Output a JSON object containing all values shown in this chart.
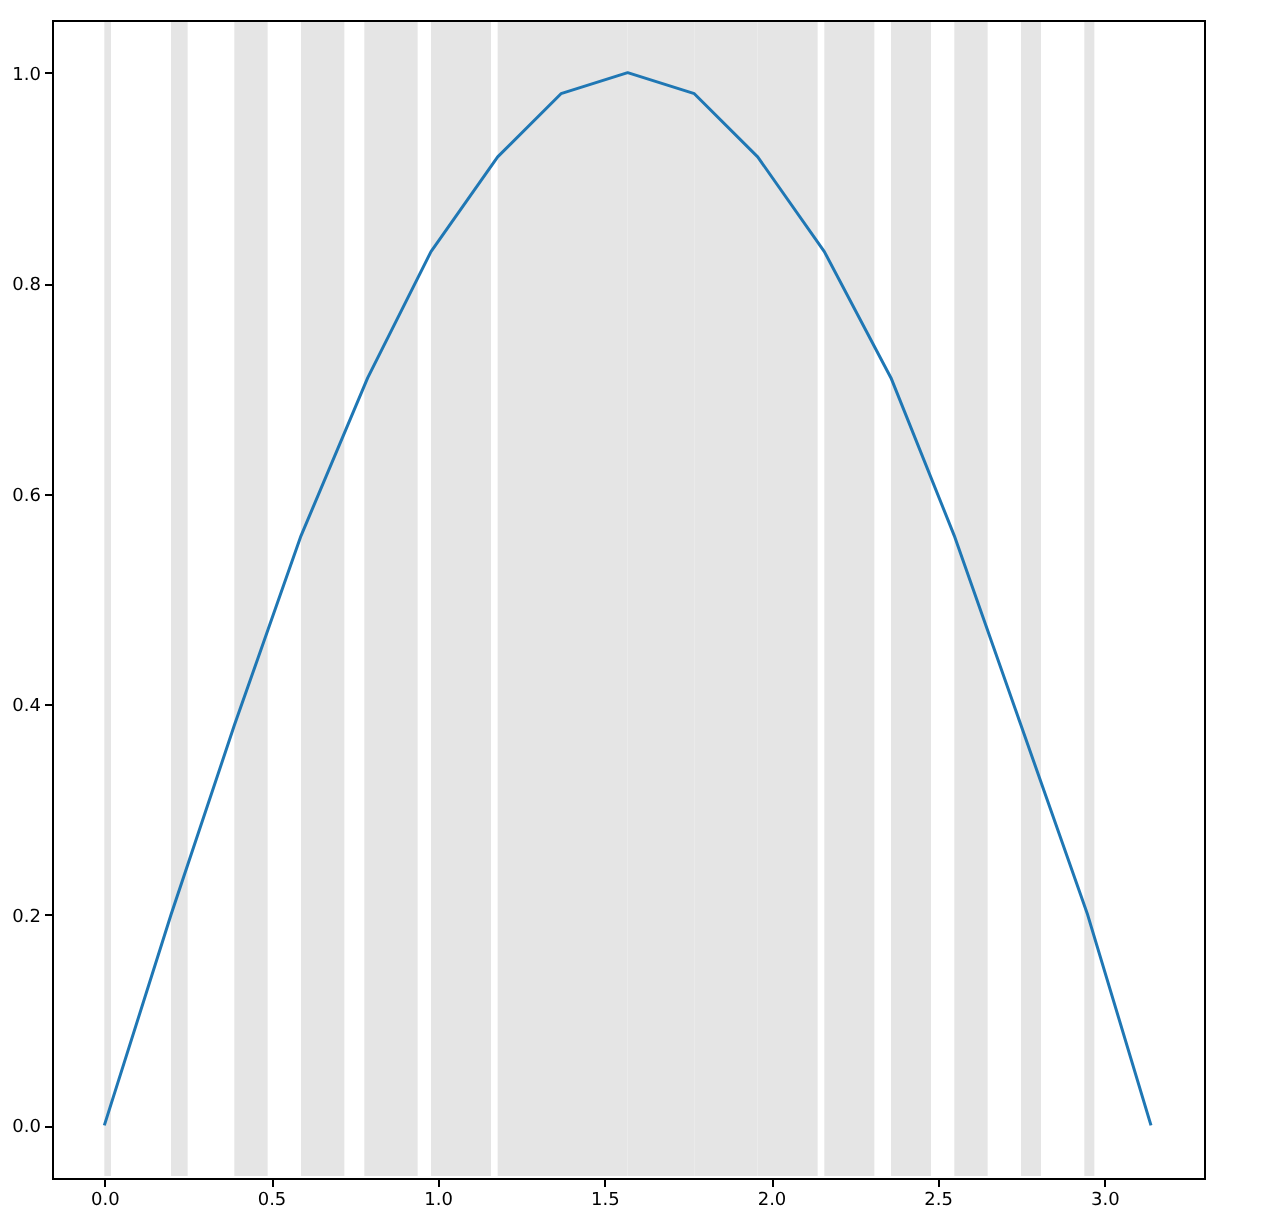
{
  "chart_data": {
    "type": "line",
    "x": [
      0,
      0.2,
      0.39,
      0.59,
      0.79,
      0.98,
      1.18,
      1.37,
      1.57,
      1.77,
      1.96,
      2.16,
      2.36,
      2.55,
      2.75,
      2.95,
      3.14
    ],
    "series": [
      {
        "color": "#1f77b4",
        "values": [
          0,
          0.2,
          0.38,
          0.56,
          0.71,
          0.83,
          0.92,
          0.98,
          1.0,
          0.98,
          0.92,
          0.83,
          0.71,
          0.56,
          0.38,
          0.2,
          0
        ]
      }
    ],
    "bands": [
      {
        "axis": "x",
        "from": 0,
        "to": 0.02,
        "color": "#e5e5e5"
      },
      {
        "axis": "x",
        "from": 0.2,
        "to": 0.25,
        "color": "#e5e5e5"
      },
      {
        "axis": "x",
        "from": 0.39,
        "to": 0.49,
        "color": "#e5e5e5"
      },
      {
        "axis": "x",
        "from": 0.59,
        "to": 0.72,
        "color": "#e5e5e5"
      },
      {
        "axis": "x",
        "from": 0.78,
        "to": 0.94,
        "color": "#e5e5e5"
      },
      {
        "axis": "x",
        "from": 0.98,
        "to": 1.16,
        "color": "#e5e5e5"
      },
      {
        "axis": "x",
        "from": 1.18,
        "to": 1.37,
        "color": "#e5e5e5"
      },
      {
        "axis": "x",
        "from": 1.37,
        "to": 1.57,
        "color": "#e5e5e5"
      },
      {
        "axis": "x",
        "from": 1.57,
        "to": 1.77,
        "color": "#e5e5e5"
      },
      {
        "axis": "x",
        "from": 1.77,
        "to": 1.96,
        "color": "#e5e5e5"
      },
      {
        "axis": "x",
        "from": 1.96,
        "to": 2.14,
        "color": "#e5e5e5"
      },
      {
        "axis": "x",
        "from": 2.16,
        "to": 2.31,
        "color": "#e5e5e5"
      },
      {
        "axis": "x",
        "from": 2.36,
        "to": 2.48,
        "color": "#e5e5e5"
      },
      {
        "axis": "x",
        "from": 2.55,
        "to": 2.65,
        "color": "#e5e5e5"
      },
      {
        "axis": "x",
        "from": 2.75,
        "to": 2.81,
        "color": "#e5e5e5"
      },
      {
        "axis": "x",
        "from": 2.94,
        "to": 2.97,
        "color": "#e5e5e5"
      }
    ],
    "xlim": [
      -0.157,
      3.299
    ],
    "ylim": [
      -0.05,
      1.05
    ],
    "xticks": [
      {
        "value": 0,
        "label": "0.0"
      },
      {
        "value": 0.5,
        "label": "0.5"
      },
      {
        "value": 1,
        "label": "1.0"
      },
      {
        "value": 1.5,
        "label": "1.5"
      },
      {
        "value": 2,
        "label": "2.0"
      },
      {
        "value": 2.5,
        "label": "2.5"
      },
      {
        "value": 3,
        "label": "3.0"
      }
    ],
    "yticks": [
      {
        "value": 0,
        "label": "0.0"
      },
      {
        "value": 0.2,
        "label": "0.2"
      },
      {
        "value": 0.4,
        "label": "0.4"
      },
      {
        "value": 0.6,
        "label": "0.6"
      },
      {
        "value": 0.8,
        "label": "0.8"
      },
      {
        "value": 1,
        "label": "1.0"
      }
    ],
    "grid": false,
    "marker": "none",
    "line_style": "solid"
  }
}
